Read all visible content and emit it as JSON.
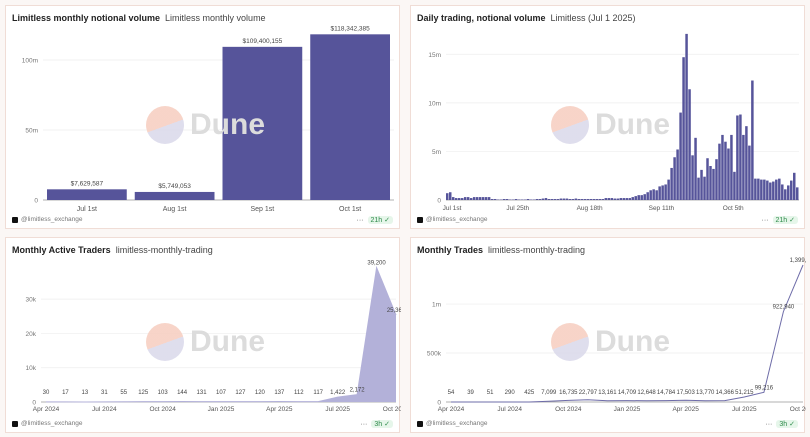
{
  "watermark": "Dune",
  "colors": {
    "bar": "#56549a",
    "area": "#b3b1d9",
    "line": "#6e6ca8",
    "grid": "#eeeeee",
    "badge": "#2d8a49"
  },
  "panels": [
    {
      "title": "Limitless monthly notional volume",
      "subtitle": "Limitless monthly volume",
      "author": "@limitless_exchange",
      "age": "21h",
      "more": "···"
    },
    {
      "title": "Daily trading, notional volume",
      "subtitle": "Limitless (Jul 1 2025)",
      "author": "@limitless_exchange",
      "age": "21h",
      "more": "···"
    },
    {
      "title": "Monthly Active Traders",
      "subtitle": "limitless-monthly-trading",
      "author": "@limitless_exchange",
      "age": "3h",
      "more": "···"
    },
    {
      "title": "Monthly Trades",
      "subtitle": "limitless-monthly-trading",
      "author": "@limitless_exchange",
      "age": "3h",
      "more": "···"
    }
  ],
  "chart_data": [
    {
      "type": "bar",
      "categories": [
        "Jul 1st",
        "Aug 1st",
        "Sep 1st",
        "Oct 1st"
      ],
      "values": [
        7629587,
        5749053,
        109400155,
        118342385
      ],
      "data_labels": [
        "$7,629,587",
        "$5,749,053",
        "$109,400,155",
        "$118,342,385"
      ],
      "ylim": [
        0,
        120000000
      ],
      "yticks": [
        0,
        50000000,
        100000000
      ],
      "ytick_labels": [
        "0",
        "50m",
        "100m"
      ],
      "grid": true
    },
    {
      "type": "bar",
      "xstart": "Jul 1 2025",
      "unit": "millions",
      "xtick_labels": [
        "Jul 1st",
        "Jul 25th",
        "Aug 18th",
        "Sep 11th",
        "Oct 5th"
      ],
      "xtick_index": [
        0,
        24,
        48,
        72,
        96
      ],
      "ylim": [
        0,
        17.5
      ],
      "yticks": [
        0,
        5,
        10,
        15
      ],
      "ytick_labels": [
        "0",
        "5m",
        "10m",
        "15m"
      ],
      "grid": true,
      "values": [
        0.7,
        0.8,
        0.3,
        0.2,
        0.2,
        0.2,
        0.3,
        0.3,
        0.2,
        0.3,
        0.3,
        0.3,
        0.3,
        0.3,
        0.3,
        0.1,
        0.1,
        0.05,
        0.05,
        0.1,
        0.1,
        0.05,
        0.05,
        0.1,
        0.05,
        0.05,
        0.05,
        0.1,
        0.05,
        0.05,
        0.1,
        0.1,
        0.15,
        0.2,
        0.1,
        0.1,
        0.1,
        0.1,
        0.15,
        0.15,
        0.15,
        0.1,
        0.1,
        0.15,
        0.1,
        0.1,
        0.1,
        0.1,
        0.1,
        0.1,
        0.1,
        0.1,
        0.1,
        0.2,
        0.2,
        0.2,
        0.15,
        0.15,
        0.2,
        0.2,
        0.2,
        0.2,
        0.3,
        0.4,
        0.5,
        0.5,
        0.6,
        0.8,
        1.0,
        1.1,
        1.0,
        1.4,
        1.5,
        1.6,
        2.1,
        3.3,
        4.4,
        5.2,
        9.0,
        14.7,
        17.1,
        11.4,
        4.6,
        6.4,
        2.3,
        3.1,
        2.4,
        4.3,
        3.5,
        3.2,
        4.2,
        5.8,
        6.7,
        6.0,
        5.3,
        6.7,
        2.9,
        8.7,
        8.8,
        6.7,
        7.6,
        5.6,
        12.3,
        2.2,
        2.2,
        2.1,
        2.1,
        2.0,
        1.8,
        1.9,
        2.1,
        2.2,
        1.6,
        1.1,
        1.5,
        2.0,
        2.8,
        1.3
      ]
    },
    {
      "type": "area",
      "xtick_labels": [
        "Apr 2024",
        "Jul 2024",
        "Oct 2024",
        "Jan 2025",
        "Apr 2025",
        "Jul 2025",
        "Oct 2025"
      ],
      "xtick_index": [
        0,
        3,
        6,
        9,
        12,
        15,
        18
      ],
      "values": [
        30,
        17,
        13,
        31,
        55,
        125,
        103,
        144,
        131,
        107,
        127,
        120,
        137,
        112,
        117,
        1422,
        2172,
        39200,
        25367
      ],
      "data_labels": [
        "30",
        "17",
        "13",
        "31",
        "55",
        "125",
        "103",
        "144",
        "131",
        "107",
        "127",
        "120",
        "137",
        "112",
        "117",
        "1,422",
        "2,172",
        "39,200",
        "25,367"
      ],
      "ylim": [
        0,
        42000
      ],
      "yticks": [
        0,
        10000,
        20000,
        30000
      ],
      "ytick_labels": [
        "0",
        "10k",
        "20k",
        "30k"
      ],
      "grid": true
    },
    {
      "type": "line",
      "xtick_labels": [
        "Apr 2024",
        "Jul 2024",
        "Oct 2024",
        "Jan 2025",
        "Apr 2025",
        "Jul 2025",
        "Oct 2025"
      ],
      "xtick_index": [
        0,
        3,
        6,
        9,
        12,
        15,
        18
      ],
      "values": [
        54,
        39,
        51,
        290,
        425,
        7099,
        16735,
        22797,
        13161,
        14709,
        12648,
        14784,
        17503,
        13770,
        14366,
        51215,
        99216,
        922940,
        1399215
      ],
      "data_labels": [
        "54",
        "39",
        "51",
        "290",
        "425",
        "7,099",
        "16,735",
        "22,797",
        "13,161",
        "14,709",
        "12,648",
        "14,784",
        "17,503",
        "13,770",
        "14,366",
        "51,215",
        "99,216",
        "922,940",
        "1,399,215"
      ],
      "ylim": [
        0,
        1450000
      ],
      "yticks": [
        0,
        500000,
        1000000
      ],
      "ytick_labels": [
        "0",
        "500k",
        "1m"
      ],
      "grid": true
    }
  ]
}
